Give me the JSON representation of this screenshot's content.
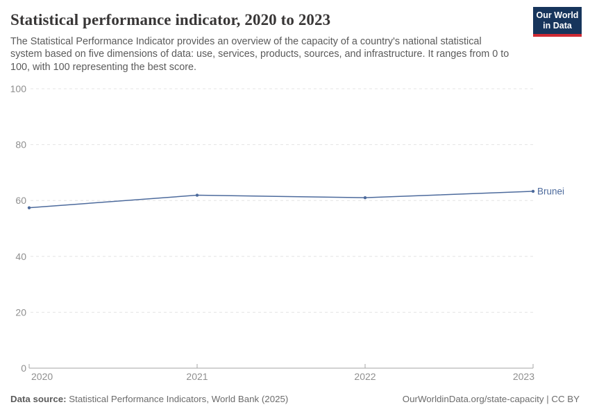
{
  "header": {
    "title": "Statistical performance indicator, 2020 to 2023",
    "subtitle": "The Statistical Performance Indicator provides an overview of the capacity of a country's national statistical system based on five dimensions of data: use, services, products, sources, and infrastructure. It ranges from 0 to 100, with 100 representing the best score.",
    "logo": {
      "line1": "Our World",
      "line2": "in Data",
      "bg_color": "#17355c",
      "stripe_color": "#cf2a33"
    }
  },
  "chart_data": {
    "type": "line",
    "title": "Statistical performance indicator, 2020 to 2023",
    "x": [
      2020,
      2021,
      2022,
      2023
    ],
    "series": [
      {
        "name": "Brunei",
        "values": [
          57.4,
          61.9,
          61.0,
          63.3
        ],
        "color": "#4c6a9c"
      }
    ],
    "ylim": [
      0,
      100
    ],
    "yticks": [
      0,
      20,
      40,
      60,
      80,
      100
    ],
    "xticks": [
      2020,
      2021,
      2022,
      2023
    ],
    "grid": true,
    "legend_position": "line-end",
    "colors": {
      "gridline": "#e4e4e4",
      "axis": "#a5a5a5",
      "tick_label": "#8f8f8f"
    }
  },
  "footer": {
    "source_label": "Data source:",
    "source_text": " Statistical Performance Indicators, World Bank (2025)",
    "attribution": "OurWorldinData.org/state-capacity | CC BY"
  }
}
